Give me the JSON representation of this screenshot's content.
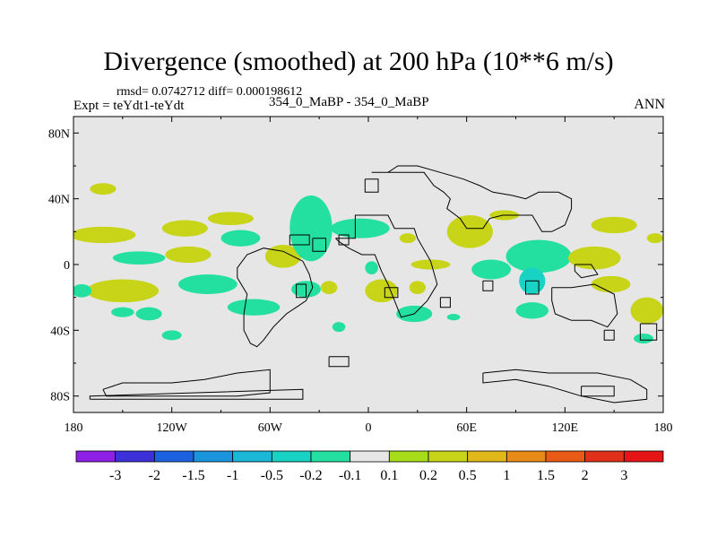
{
  "chart_data": {
    "type": "heatmap",
    "title": "Divergence (smoothed) at 200 hPa (10**6 m/s)",
    "stats_text": "rmsd= 0.0742712 diff= 0.000198612",
    "subtitle_left": "Expt = teYdt1-teYdt",
    "subtitle_center": "354_0_MaBP - 354_0_MaBP",
    "subtitle_right": "ANN",
    "x_axis": {
      "range": [
        -180,
        180
      ],
      "ticks": [
        -180,
        -120,
        -60,
        0,
        60,
        120,
        180
      ],
      "tick_labels": [
        "180",
        "120W",
        "60W",
        "0",
        "60E",
        "120E",
        "180"
      ]
    },
    "y_axis": {
      "range": [
        -90,
        90
      ],
      "ticks": [
        -80,
        -40,
        0,
        40,
        80
      ],
      "tick_labels": [
        "80S",
        "40S",
        "0",
        "40N",
        "80N"
      ]
    },
    "colorbar": {
      "levels": [
        "-3",
        "-2",
        "-1.5",
        "-1",
        "-0.5",
        "-0.2",
        "-0.1",
        "0.1",
        "0.2",
        "0.5",
        "1",
        "1.5",
        "2",
        "3"
      ],
      "colors": [
        "#8e1fe6",
        "#3c30d8",
        "#1c62e0",
        "#1a94dd",
        "#1ab8d6",
        "#18d2c4",
        "#24e0a0",
        "#e6e6e6",
        "#a6dc1a",
        "#c8d418",
        "#e0b81a",
        "#e88a18",
        "#e85a16",
        "#e0301a",
        "#e61414"
      ]
    },
    "background_color": "#e6e6e6",
    "line_color": "#000000",
    "blobs": [
      {
        "lon": -162,
        "lat": 46,
        "rlon": 8,
        "rlat": 3.5,
        "value": 0.3
      },
      {
        "lon": -162,
        "lat": 18,
        "rlon": 20,
        "rlat": 5,
        "value": 0.3
      },
      {
        "lon": -140,
        "lat": 4,
        "rlon": 16,
        "rlat": 4,
        "value": -0.15
      },
      {
        "lon": -150,
        "lat": -16,
        "rlon": 22,
        "rlat": 7,
        "value": 0.3
      },
      {
        "lon": -175,
        "lat": -16,
        "rlon": 6,
        "rlat": 4,
        "value": -0.15
      },
      {
        "lon": -150,
        "lat": -29,
        "rlon": 7,
        "rlat": 3,
        "value": -0.15
      },
      {
        "lon": -134,
        "lat": -30,
        "rlon": 8,
        "rlat": 4,
        "value": -0.15
      },
      {
        "lon": -112,
        "lat": 22,
        "rlon": 14,
        "rlat": 5,
        "value": 0.3
      },
      {
        "lon": -110,
        "lat": 6,
        "rlon": 14,
        "rlat": 5,
        "value": 0.3
      },
      {
        "lon": -98,
        "lat": -12,
        "rlon": 18,
        "rlat": 6,
        "value": -0.15
      },
      {
        "lon": -84,
        "lat": 28,
        "rlon": 14,
        "rlat": 4,
        "value": 0.3
      },
      {
        "lon": -78,
        "lat": 16,
        "rlon": 12,
        "rlat": 5,
        "value": -0.15
      },
      {
        "lon": -70,
        "lat": -26,
        "rlon": 16,
        "rlat": 5,
        "value": -0.15
      },
      {
        "lon": -52,
        "lat": 5,
        "rlon": 11,
        "rlat": 7,
        "value": 0.3
      },
      {
        "lon": -35,
        "lat": 22,
        "rlon": 13,
        "rlat": 20,
        "value": -0.15
      },
      {
        "lon": -38,
        "lat": -15,
        "rlon": 9,
        "rlat": 5,
        "value": -0.15
      },
      {
        "lon": -24,
        "lat": -14,
        "rlon": 5,
        "rlat": 4,
        "value": 0.3
      },
      {
        "lon": -18,
        "lat": -38,
        "rlon": 4,
        "rlat": 3,
        "value": -0.15
      },
      {
        "lon": -5,
        "lat": 22,
        "rlon": 18,
        "rlat": 6,
        "value": -0.15
      },
      {
        "lon": 2,
        "lat": -2,
        "rlon": 4,
        "rlat": 4,
        "value": -0.15
      },
      {
        "lon": 8,
        "lat": -16,
        "rlon": 10,
        "rlat": 7,
        "value": 0.3
      },
      {
        "lon": 24,
        "lat": 16,
        "rlon": 5,
        "rlat": 3,
        "value": 0.3
      },
      {
        "lon": 28,
        "lat": -30,
        "rlon": 11,
        "rlat": 5,
        "value": -0.15
      },
      {
        "lon": 38,
        "lat": 0,
        "rlon": 12,
        "rlat": 3,
        "value": 0.3
      },
      {
        "lon": 30,
        "lat": -14,
        "rlon": 5,
        "rlat": 4,
        "value": 0.3
      },
      {
        "lon": 52,
        "lat": -32,
        "rlon": 4,
        "rlat": 2,
        "value": -0.15
      },
      {
        "lon": 62,
        "lat": 20,
        "rlon": 14,
        "rlat": 10,
        "value": 0.4
      },
      {
        "lon": 83,
        "lat": 30,
        "rlon": 9,
        "rlat": 3,
        "value": 0.3
      },
      {
        "lon": 75,
        "lat": -3,
        "rlon": 12,
        "rlat": 6,
        "value": -0.15
      },
      {
        "lon": 104,
        "lat": 5,
        "rlon": 20,
        "rlat": 10,
        "value": -0.15
      },
      {
        "lon": 100,
        "lat": -10,
        "rlon": 8,
        "rlat": 8,
        "value": -0.5
      },
      {
        "lon": 100,
        "lat": -28,
        "rlon": 10,
        "rlat": 5,
        "value": -0.15
      },
      {
        "lon": 138,
        "lat": 4,
        "rlon": 16,
        "rlat": 7,
        "value": 0.3
      },
      {
        "lon": 150,
        "lat": 24,
        "rlon": 14,
        "rlat": 5,
        "value": 0.3
      },
      {
        "lon": 148,
        "lat": -12,
        "rlon": 12,
        "rlat": 5,
        "value": 0.3
      },
      {
        "lon": 170,
        "lat": -28,
        "rlon": 10,
        "rlat": 8,
        "value": 0.3
      },
      {
        "lon": 168,
        "lat": -45,
        "rlon": 6,
        "rlat": 3,
        "value": -0.15
      },
      {
        "lon": 175,
        "lat": 16,
        "rlon": 5,
        "rlat": 3,
        "value": 0.3
      },
      {
        "lon": -120,
        "lat": -43,
        "rlon": 6,
        "rlat": 3,
        "value": -0.15
      }
    ],
    "coastlines": [
      [
        [
          -20,
          16
        ],
        [
          -8,
          16
        ],
        [
          -8,
          30
        ],
        [
          12,
          30
        ],
        [
          16,
          22
        ],
        [
          28,
          22
        ],
        [
          30,
          16
        ],
        [
          38,
          2
        ],
        [
          42,
          -12
        ],
        [
          36,
          -22
        ],
        [
          28,
          -30
        ],
        [
          20,
          -32
        ],
        [
          16,
          -22
        ],
        [
          12,
          -12
        ],
        [
          8,
          -4
        ],
        [
          4,
          6
        ],
        [
          -4,
          6
        ],
        [
          -12,
          10
        ],
        [
          -18,
          14
        ],
        [
          -20,
          16
        ]
      ],
      [
        [
          -2,
          52
        ],
        [
          6,
          52
        ],
        [
          6,
          44
        ],
        [
          -2,
          44
        ],
        [
          -2,
          52
        ]
      ],
      [
        [
          2,
          56
        ],
        [
          34,
          56
        ],
        [
          40,
          48
        ],
        [
          46,
          44
        ],
        [
          50,
          40
        ],
        [
          48,
          34
        ],
        [
          56,
          28
        ],
        [
          60,
          22
        ],
        [
          70,
          22
        ],
        [
          74,
          28
        ],
        [
          82,
          30
        ],
        [
          92,
          30
        ],
        [
          100,
          30
        ],
        [
          106,
          20
        ],
        [
          112,
          20
        ],
        [
          120,
          24
        ],
        [
          124,
          34
        ],
        [
          124,
          40
        ],
        [
          116,
          44
        ],
        [
          104,
          44
        ],
        [
          96,
          40
        ],
        [
          88,
          42
        ],
        [
          76,
          44
        ],
        [
          68,
          48
        ],
        [
          58,
          52
        ],
        [
          44,
          56
        ],
        [
          30,
          60
        ],
        [
          18,
          60
        ],
        [
          12,
          56
        ],
        [
          6,
          56
        ],
        [
          2,
          56
        ]
      ],
      [
        [
          -34,
          16
        ],
        [
          -26,
          16
        ],
        [
          -26,
          8
        ],
        [
          -34,
          8
        ],
        [
          -34,
          16
        ]
      ],
      [
        [
          -48,
          18
        ],
        [
          -36,
          18
        ],
        [
          -36,
          12
        ],
        [
          -48,
          12
        ],
        [
          -48,
          18
        ]
      ],
      [
        [
          -40,
          2
        ],
        [
          -36,
          -6
        ],
        [
          -34,
          -14
        ],
        [
          -38,
          -22
        ],
        [
          -44,
          -26
        ],
        [
          -50,
          -30
        ],
        [
          -58,
          -38
        ],
        [
          -64,
          -46
        ],
        [
          -68,
          -50
        ],
        [
          -72,
          -48
        ],
        [
          -76,
          -40
        ],
        [
          -76,
          -30
        ],
        [
          -74,
          -18
        ],
        [
          -80,
          -8
        ],
        [
          -80,
          -2
        ],
        [
          -74,
          6
        ],
        [
          -64,
          10
        ],
        [
          -52,
          8
        ],
        [
          -44,
          4
        ],
        [
          -40,
          2
        ]
      ],
      [
        [
          -44,
          -12
        ],
        [
          -38,
          -12
        ],
        [
          -38,
          -20
        ],
        [
          -44,
          -20
        ],
        [
          -44,
          -12
        ]
      ],
      [
        [
          -18,
          18
        ],
        [
          -12,
          18
        ],
        [
          -12,
          12
        ],
        [
          -18,
          12
        ],
        [
          -18,
          18
        ]
      ],
      [
        [
          10,
          -14
        ],
        [
          18,
          -14
        ],
        [
          18,
          -20
        ],
        [
          10,
          -20
        ],
        [
          10,
          -14
        ]
      ],
      [
        [
          44,
          -20
        ],
        [
          50,
          -20
        ],
        [
          50,
          -26
        ],
        [
          44,
          -26
        ],
        [
          44,
          -20
        ]
      ],
      [
        [
          70,
          -10
        ],
        [
          76,
          -10
        ],
        [
          76,
          -16
        ],
        [
          70,
          -16
        ],
        [
          70,
          -10
        ]
      ],
      [
        [
          96,
          -10
        ],
        [
          104,
          -10
        ],
        [
          104,
          -18
        ],
        [
          96,
          -18
        ],
        [
          96,
          -10
        ]
      ],
      [
        [
          112,
          -14
        ],
        [
          124,
          -14
        ],
        [
          138,
          -12
        ],
        [
          150,
          -18
        ],
        [
          152,
          -30
        ],
        [
          146,
          -38
        ],
        [
          136,
          -34
        ],
        [
          124,
          -34
        ],
        [
          114,
          -30
        ],
        [
          112,
          -22
        ],
        [
          112,
          -14
        ]
      ],
      [
        [
          126,
          0
        ],
        [
          136,
          0
        ],
        [
          140,
          -6
        ],
        [
          130,
          -8
        ],
        [
          126,
          -4
        ],
        [
          126,
          0
        ]
      ],
      [
        [
          144,
          -40
        ],
        [
          150,
          -40
        ],
        [
          150,
          -46
        ],
        [
          144,
          -46
        ],
        [
          144,
          -40
        ]
      ],
      [
        [
          166,
          -36
        ],
        [
          176,
          -36
        ],
        [
          176,
          -46
        ],
        [
          166,
          -46
        ],
        [
          166,
          -36
        ]
      ],
      [
        [
          -162,
          -76
        ],
        [
          -150,
          -72
        ],
        [
          -120,
          -72
        ],
        [
          -100,
          -70
        ],
        [
          -80,
          -66
        ],
        [
          -60,
          -64
        ],
        [
          -60,
          -78
        ],
        [
          -80,
          -80
        ],
        [
          -110,
          -80
        ],
        [
          -140,
          -80
        ],
        [
          -160,
          -80
        ],
        [
          -162,
          -76
        ]
      ],
      [
        [
          -170,
          -82
        ],
        [
          -40,
          -82
        ],
        [
          -40,
          -76
        ],
        [
          -170,
          -80
        ],
        [
          -170,
          -82
        ]
      ],
      [
        [
          -24,
          -56
        ],
        [
          -12,
          -56
        ],
        [
          -12,
          -62
        ],
        [
          -24,
          -62
        ],
        [
          -24,
          -56
        ]
      ],
      [
        [
          70,
          -66
        ],
        [
          90,
          -64
        ],
        [
          110,
          -66
        ],
        [
          126,
          -66
        ],
        [
          140,
          -66
        ],
        [
          160,
          -70
        ],
        [
          170,
          -76
        ],
        [
          170,
          -82
        ],
        [
          150,
          -84
        ],
        [
          130,
          -80
        ],
        [
          110,
          -74
        ],
        [
          90,
          -70
        ],
        [
          70,
          -72
        ],
        [
          70,
          -66
        ]
      ],
      [
        [
          130,
          -74
        ],
        [
          150,
          -74
        ],
        [
          150,
          -80
        ],
        [
          130,
          -80
        ],
        [
          130,
          -74
        ]
      ]
    ]
  }
}
